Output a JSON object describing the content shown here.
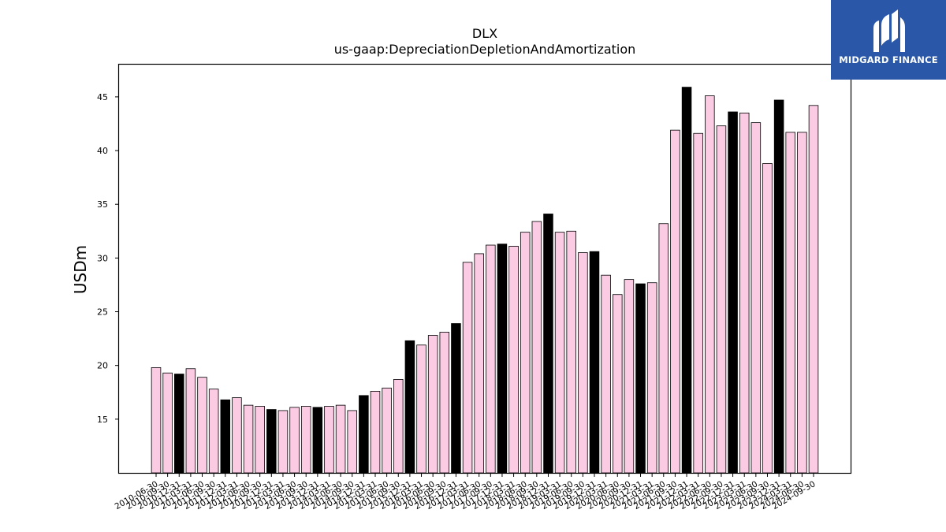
{
  "logo": {
    "text": "MIDGARD FINANCE",
    "icon": "midgard-logo-mark"
  },
  "colors": {
    "bar_default": "#fbcae3",
    "bar_highlight": "#000000",
    "edge": "#000000",
    "logo_bg": "#2a57a8"
  },
  "chart_data": {
    "type": "bar",
    "title": "DLX",
    "subtitle": "us-gaap:DepreciationDepletionAndAmortization",
    "xlabel": "",
    "ylabel": "USDm",
    "ylim": [
      10,
      48
    ],
    "yticks": [
      15,
      20,
      25,
      30,
      35,
      40,
      45
    ],
    "grid": false,
    "categories": [
      "2010-06-30",
      "2010-09-30",
      "2010-12-31",
      "2011-03-31",
      "2011-06-30",
      "2011-09-30",
      "2011-12-31",
      "2012-03-31",
      "2012-06-30",
      "2012-09-30",
      "2012-12-31",
      "2013-03-31",
      "2013-06-30",
      "2013-09-30",
      "2013-12-31",
      "2014-03-31",
      "2014-06-30",
      "2014-09-30",
      "2014-12-31",
      "2015-03-31",
      "2015-06-30",
      "2015-09-30",
      "2015-12-31",
      "2016-03-31",
      "2016-06-30",
      "2016-09-30",
      "2016-12-31",
      "2017-03-31",
      "2017-06-30",
      "2017-09-30",
      "2017-12-31",
      "2018-03-31",
      "2018-06-30",
      "2018-09-30",
      "2018-12-31",
      "2019-03-31",
      "2019-06-30",
      "2019-09-30",
      "2019-12-31",
      "2020-03-31",
      "2020-06-30",
      "2020-09-30",
      "2020-12-31",
      "2021-03-31",
      "2021-06-30",
      "2021-09-30",
      "2021-12-31",
      "2022-03-31",
      "2022-06-30",
      "2022-09-30",
      "2022-12-31",
      "2023-03-31",
      "2023-06-30",
      "2023-09-30",
      "2023-12-31",
      "2024-03-31",
      "2024-06-30",
      "2024-09-30"
    ],
    "values": [
      19.8,
      19.3,
      19.2,
      19.7,
      18.9,
      17.8,
      16.8,
      17.0,
      16.3,
      16.2,
      15.9,
      15.8,
      16.1,
      16.2,
      16.1,
      16.2,
      16.3,
      15.8,
      17.2,
      17.6,
      17.9,
      18.7,
      22.3,
      21.9,
      22.8,
      23.1,
      23.9,
      29.6,
      30.4,
      31.2,
      31.3,
      31.1,
      32.4,
      33.4,
      34.1,
      32.4,
      32.5,
      30.5,
      30.6,
      28.4,
      26.6,
      28.0,
      27.6,
      27.7,
      33.2,
      41.9,
      45.9,
      41.6,
      45.1,
      42.3,
      43.6,
      43.5,
      42.6,
      38.8,
      44.7,
      41.7,
      41.7,
      44.2
    ],
    "highlight": [
      false,
      false,
      true,
      false,
      false,
      false,
      true,
      false,
      false,
      false,
      true,
      false,
      false,
      false,
      true,
      false,
      false,
      false,
      true,
      false,
      false,
      false,
      true,
      false,
      false,
      false,
      true,
      false,
      false,
      false,
      true,
      false,
      false,
      false,
      true,
      false,
      false,
      false,
      true,
      false,
      false,
      false,
      true,
      false,
      false,
      false,
      true,
      false,
      false,
      false,
      true,
      false,
      false,
      false,
      true,
      false,
      false,
      false
    ]
  }
}
